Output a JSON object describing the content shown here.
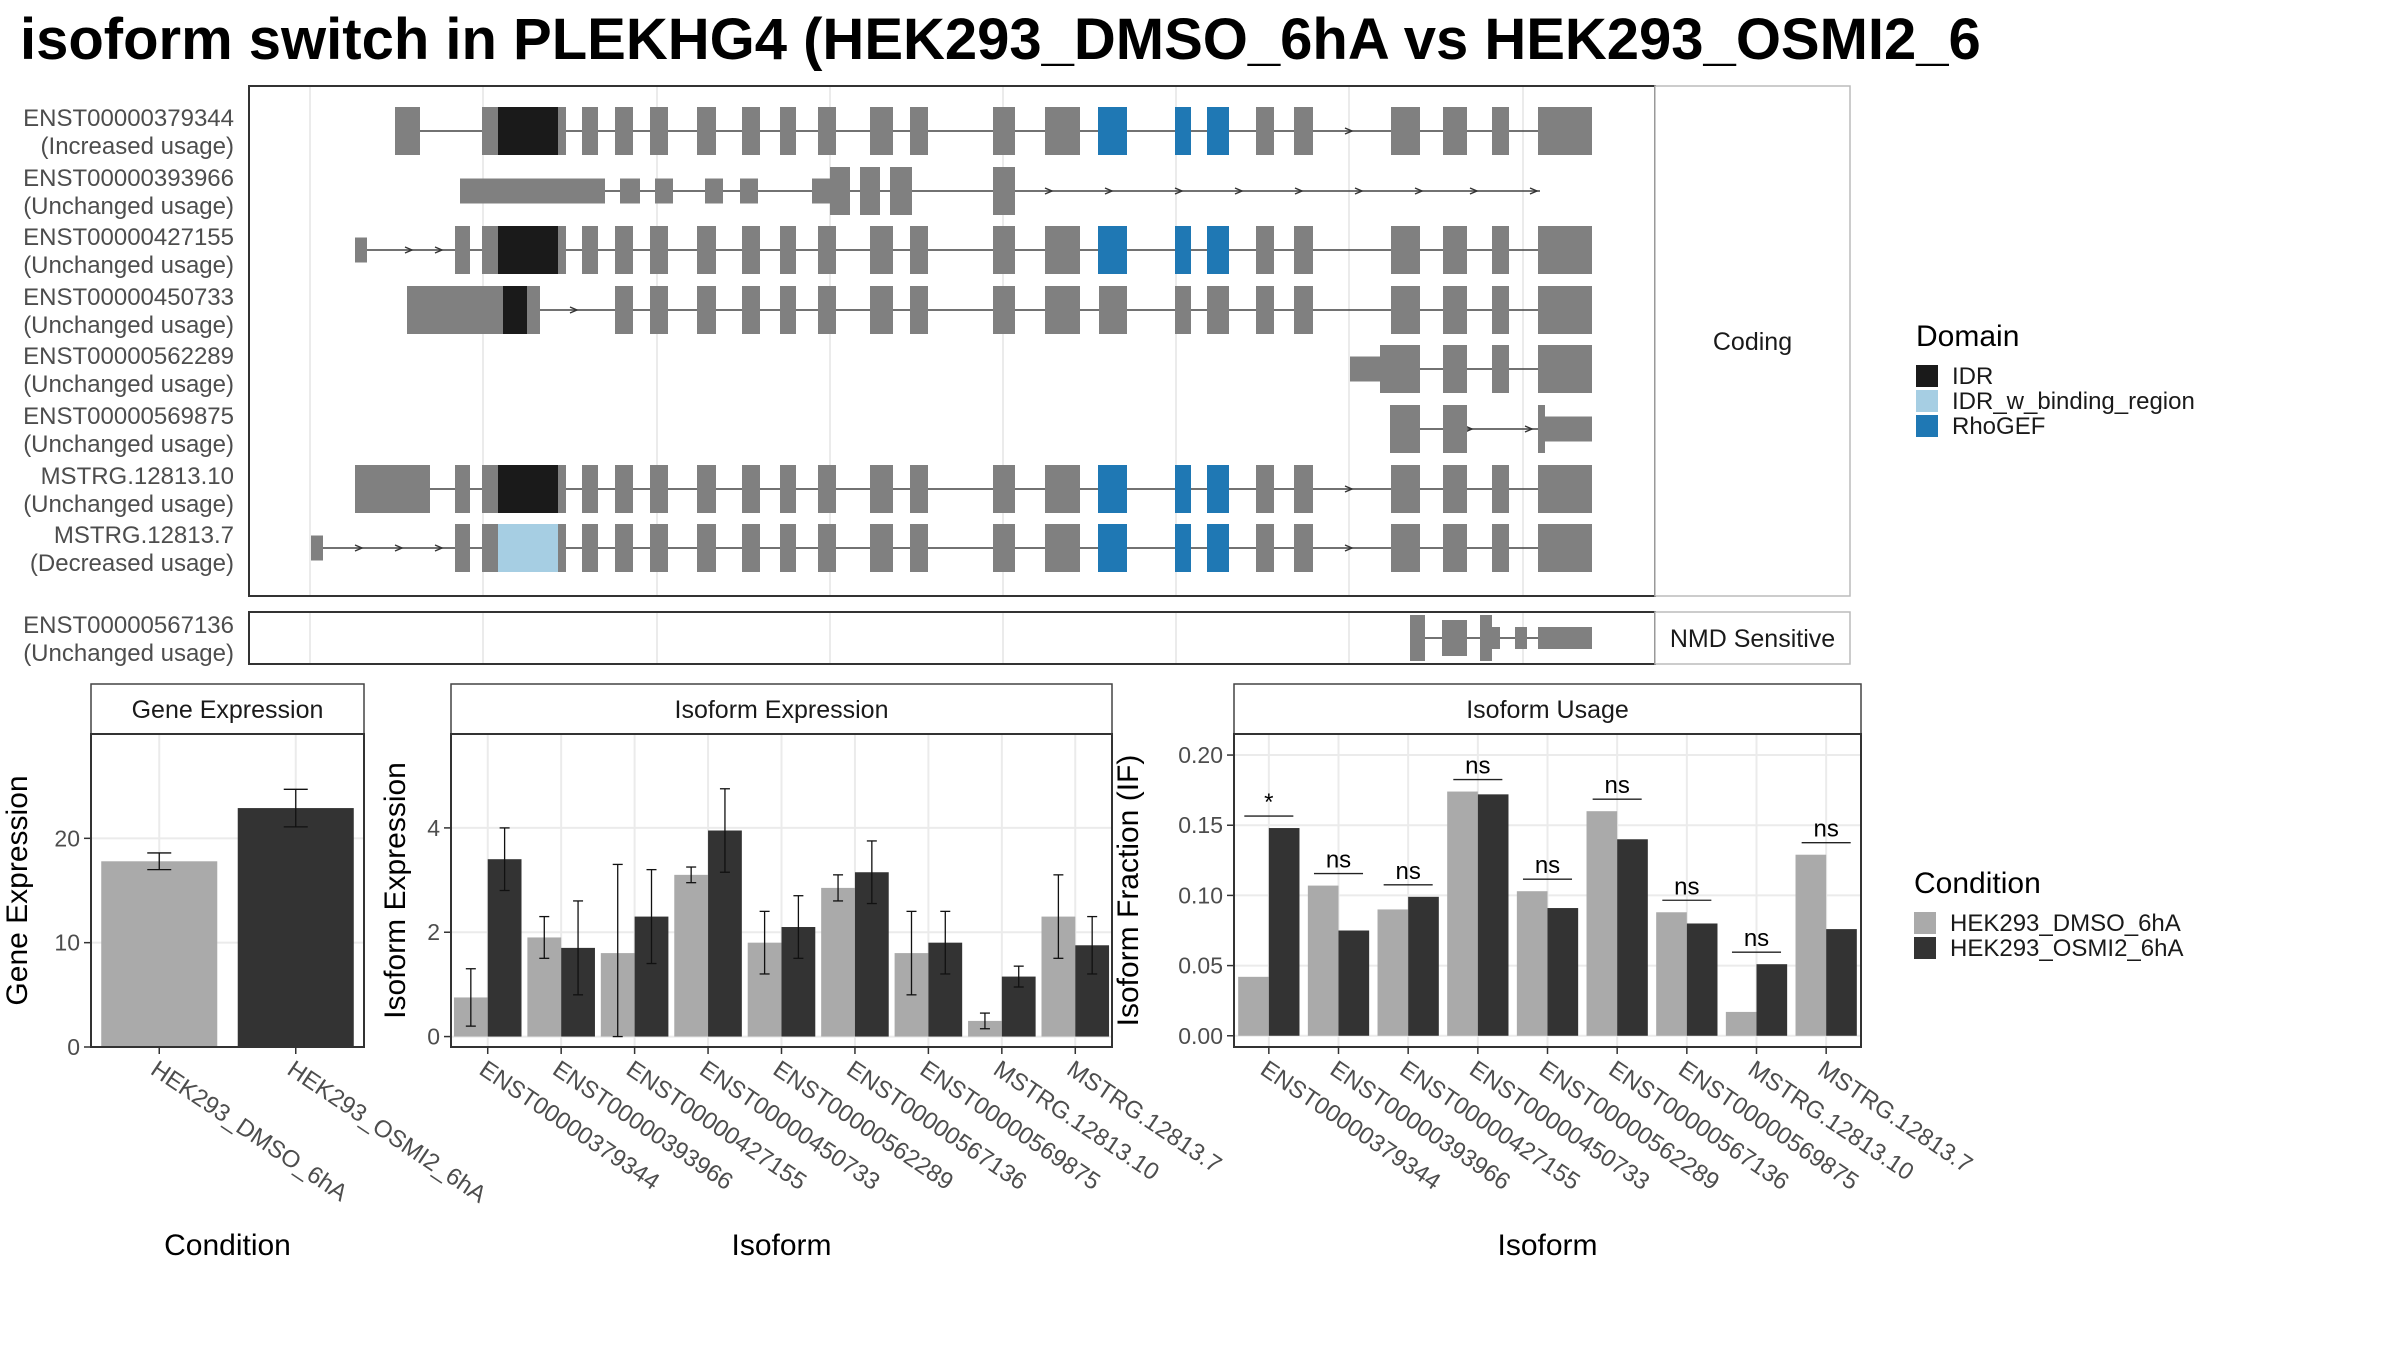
{
  "title": "isoform switch in PLEKHG4 (HEK293_DMSO_6hA vs HEK293_OSMI2_6",
  "colors": {
    "exon": "#808080",
    "idr": "#1a1a1a",
    "idr_w_binding_region": "#a6cee3",
    "rhogef": "#1f78b4",
    "condition_dmso": "#aaaaaa",
    "condition_osmi2": "#333333"
  },
  "transcripts": {
    "section_coding": "Coding",
    "section_nmd": "NMD Sensitive",
    "coding": [
      {
        "id": "ENST00000379344",
        "usage": "(Increased usage)"
      },
      {
        "id": "ENST00000393966",
        "usage": "(Unchanged usage)"
      },
      {
        "id": "ENST00000427155",
        "usage": "(Unchanged usage)"
      },
      {
        "id": "ENST00000450733",
        "usage": "(Unchanged usage)"
      },
      {
        "id": "ENST00000562289",
        "usage": "(Unchanged usage)"
      },
      {
        "id": "ENST00000569875",
        "usage": "(Unchanged usage)"
      },
      {
        "id": "MSTRG.12813.10",
        "usage": "(Unchanged usage)"
      },
      {
        "id": "MSTRG.12813.7",
        "usage": "(Decreased usage)"
      }
    ],
    "nmd": [
      {
        "id": "ENST00000567136",
        "usage": "(Unchanged usage)"
      }
    ]
  },
  "domain_legend": {
    "title": "Domain",
    "items": [
      {
        "label": "IDR",
        "color": "#1a1a1a"
      },
      {
        "label": "IDR_w_binding_region",
        "color": "#a6cee3"
      },
      {
        "label": "RhoGEF",
        "color": "#1f78b4"
      }
    ]
  },
  "condition_legend": {
    "title": "Condition",
    "items": [
      {
        "label": "HEK293_DMSO_6hA",
        "color": "#aaaaaa"
      },
      {
        "label": "HEK293_OSMI2_6hA",
        "color": "#333333"
      }
    ]
  },
  "chart_data": [
    {
      "type": "bar",
      "title": "Gene Expression",
      "xlabel": "Condition",
      "ylabel": "Gene Expression",
      "categories": [
        "HEK293_DMSO_6hA",
        "HEK293_OSMI2_6hA"
      ],
      "values": [
        17.8,
        22.9
      ],
      "errors": [
        [
          17.0,
          18.6
        ],
        [
          21.1,
          24.7
        ]
      ],
      "ylim": [
        0,
        30
      ],
      "yticks": [
        0,
        10,
        20
      ]
    },
    {
      "type": "bar",
      "title": "Isoform Expression",
      "xlabel": "Isoform",
      "ylabel": "Isoform Expression",
      "categories": [
        "ENST00000379344",
        "ENST00000393966",
        "ENST00000427155",
        "ENST00000450733",
        "ENST00000562289",
        "ENST00000567136",
        "ENST00000569875",
        "MSTRG.12813.10",
        "MSTRG.12813.7"
      ],
      "series": [
        {
          "name": "HEK293_DMSO_6hA",
          "values": [
            0.75,
            1.9,
            1.6,
            3.1,
            1.8,
            2.85,
            1.6,
            0.3,
            2.3
          ],
          "errors": [
            [
              0.2,
              1.3
            ],
            [
              1.5,
              2.3
            ],
            [
              0.0,
              3.3
            ],
            [
              2.95,
              3.25
            ],
            [
              1.2,
              2.4
            ],
            [
              2.6,
              3.1
            ],
            [
              0.8,
              2.4
            ],
            [
              0.15,
              0.45
            ],
            [
              1.5,
              3.1
            ]
          ]
        },
        {
          "name": "HEK293_OSMI2_6hA",
          "values": [
            3.4,
            1.7,
            2.3,
            3.95,
            2.1,
            3.15,
            1.8,
            1.15,
            1.75
          ],
          "errors": [
            [
              2.8,
              4.0
            ],
            [
              0.8,
              2.6
            ],
            [
              1.4,
              3.2
            ],
            [
              3.15,
              4.75
            ],
            [
              1.5,
              2.7
            ],
            [
              2.55,
              3.75
            ],
            [
              1.2,
              2.4
            ],
            [
              0.95,
              1.35
            ],
            [
              1.2,
              2.3
            ]
          ]
        }
      ],
      "ylim": [
        -0.2,
        5.8
      ],
      "yticks": [
        0,
        2,
        4
      ]
    },
    {
      "type": "bar",
      "title": "Isoform Usage",
      "xlabel": "Isoform",
      "ylabel": "Isoform Fraction (IF)",
      "categories": [
        "ENST00000379344",
        "ENST00000393966",
        "ENST00000427155",
        "ENST00000450733",
        "ENST00000562289",
        "ENST00000567136",
        "ENST00000569875",
        "MSTRG.12813.10",
        "MSTRG.12813.7"
      ],
      "series": [
        {
          "name": "HEK293_DMSO_6hA",
          "values": [
            0.042,
            0.107,
            0.09,
            0.174,
            0.103,
            0.16,
            0.088,
            0.017,
            0.129
          ]
        },
        {
          "name": "HEK293_OSMI2_6hA",
          "values": [
            0.148,
            0.075,
            0.099,
            0.172,
            0.091,
            0.14,
            0.08,
            0.051,
            0.076
          ]
        }
      ],
      "significance": [
        "*",
        "ns",
        "ns",
        "ns",
        "ns",
        "ns",
        "ns",
        "ns",
        "ns"
      ],
      "ylim": [
        -0.008,
        0.215
      ],
      "yticks": [
        "0.00",
        "0.05",
        "0.10",
        "0.15",
        "0.20"
      ]
    }
  ]
}
